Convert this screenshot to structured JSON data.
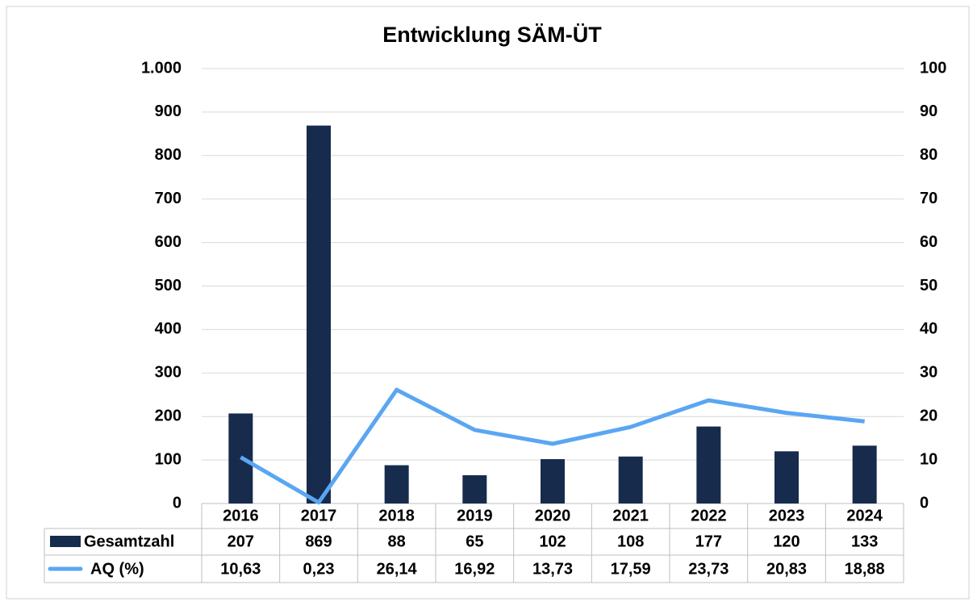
{
  "chart_data": {
    "type": "bar_line",
    "title": "Entwicklung SÄM-ÜT",
    "categories": [
      "2016",
      "2017",
      "2018",
      "2019",
      "2020",
      "2021",
      "2022",
      "2023",
      "2024"
    ],
    "series": [
      {
        "name": "Gesamtzahl",
        "type": "bar",
        "color": "#172b4d",
        "values": [
          207,
          869,
          88,
          65,
          102,
          108,
          177,
          120,
          133
        ]
      },
      {
        "name": "AQ (%)",
        "type": "line",
        "axis": "y2",
        "color": "#5aa6f2",
        "values": [
          10.63,
          0.23,
          26.14,
          16.92,
          13.73,
          17.59,
          23.73,
          20.83,
          18.88
        ],
        "value_labels": [
          "10,63",
          "0,23",
          "26,14",
          "16,92",
          "13,73",
          "17,59",
          "23,73",
          "20,83",
          "18,88"
        ]
      }
    ],
    "ylim": [
      0,
      1000
    ],
    "yticks": [
      0,
      100,
      200,
      300,
      400,
      500,
      600,
      700,
      800,
      900,
      {
        "value": 1000,
        "label": "1.000"
      }
    ],
    "y2lim": [
      0,
      100
    ],
    "y2ticks": [
      0,
      10,
      20,
      30,
      40,
      50,
      60,
      70,
      80,
      90,
      100
    ],
    "grid": true,
    "data_table": true
  }
}
